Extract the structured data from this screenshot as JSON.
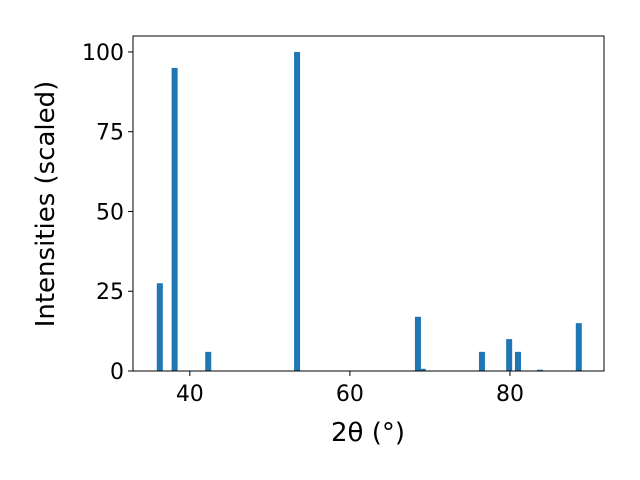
{
  "chart_data": {
    "type": "bar",
    "x": [
      36.25,
      38.1,
      42.3,
      53.4,
      68.5,
      69.1,
      76.5,
      79.9,
      81.0,
      83.75,
      88.6
    ],
    "values": [
      27.5,
      95,
      6,
      100,
      17,
      0.7,
      6,
      10,
      6,
      0.4,
      15
    ],
    "color": "#1f77b4",
    "xlabel": "2θ (°)",
    "ylabel": "Intensities (scaled)",
    "xlim": [
      32.9,
      91.75
    ],
    "xticks": [
      40,
      60,
      80
    ],
    "ylim": [
      0,
      105
    ],
    "yticks": [
      0,
      25,
      50,
      75,
      100
    ],
    "grid": false
  }
}
